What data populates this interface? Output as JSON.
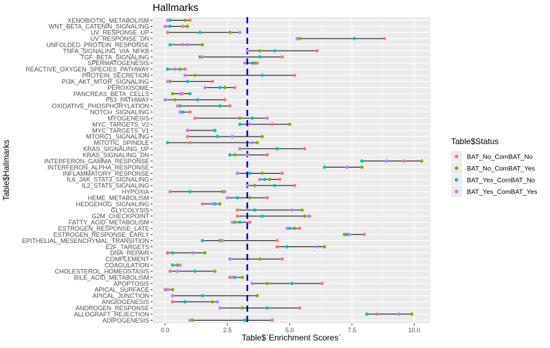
{
  "chart_data": {
    "type": "dumbbell",
    "title": "Hallmarks",
    "xlabel": "Table$`Enrichment Scores`",
    "ylabel": "Table$Hallmarks",
    "xlim": [
      -0.5,
      10.65
    ],
    "xticks": [
      0.0,
      2.5,
      5.0,
      7.5,
      10.0
    ],
    "xtick_labels": [
      "0.0",
      "2.5",
      "5.0",
      "7.5",
      "10.0"
    ],
    "reference_line": 3.3,
    "grid": true,
    "legend": {
      "title": "Table$Status",
      "position": "right",
      "entries": [
        "BAT_No_ComBAT_No",
        "BAT_No_ComBAT_Yes",
        "BAT_Yes_ComBAT_No",
        "BAT_Yes_ComBAT_Yes"
      ]
    },
    "colors": {
      "BAT_No_ComBAT_No": "#F8766D",
      "BAT_No_ComBAT_Yes": "#7CAE00",
      "BAT_Yes_ComBAT_No": "#00BFC4",
      "BAT_Yes_ComBAT_Yes": "#C77CFF",
      "reference_line": "#0000CC",
      "panel": "#EBEBEB"
    },
    "categories": [
      "XENOBIOTIC_METABOLISM",
      "WNT_BETA_CATENIN_SIGNALING",
      "UV_RESPONSE_UP",
      "UV_RESPONSE_DN",
      "UNFOLDED_PROTEIN_RESPONSE",
      "TNFA_SIGNALING_VIA_NFKB",
      "TGF_BETA_SIGNALING",
      "SPERMATOGENESIS",
      "REACTIVE_OXYGEN_SPECIES_PATHWAY",
      "PROTEIN_SECRETION",
      "PI3K_AKT_MTOR_SIGNALING",
      "PEROXISOME",
      "PANCREAS_BETA_CELLS",
      "P53_PATHWAY",
      "OXIDATIVE_PHOSPHORYLATION",
      "NOTCH_SIGNALING",
      "MYOGENESIS",
      "MYC_TARGETS_V2",
      "MYC_TARGETS_V1",
      "MTORC1_SIGNALING",
      "MITOTIC_SPINDLE",
      "KRAS_SIGNALING_UP",
      "KRAS_SIGNALING_DN",
      "INTERFERON_GAMMA_RESPONSE",
      "INTERFERON_ALPHA_RESPONSE",
      "INFLAMMATORY_RESPONSE",
      "IL6_JAK_STAT3_SIGNALING",
      "IL2_STAT5_SIGNALING",
      "HYPOXIA",
      "HEME_METABOLISM",
      "HEDGEHOG_SIGNALING",
      "GLYCOLYSIS",
      "G2M_CHECKPOINT",
      "FATTY_ACID_METABOLISM",
      "ESTROGEN_RESPONSE_LATE",
      "ESTROGEN_RESPONSE_EARLY",
      "EPITHELIAL_MESENCHYMAL_TRANSITION",
      "E2F_TARGETS",
      "DNA_REPAIR",
      "COMPLEMENT",
      "COAGULATION",
      "CHOLESTEROL_HOMEOSTASIS",
      "BILE_ACID_METABOLISM",
      "APOPTOSIS",
      "APICAL_SURFACE",
      "APICAL_JUNCTION",
      "ANGIOGENESIS",
      "ANDROGEN_RESPONSE",
      "ALLOGRAFT_REJECTION",
      "ADIPOGENESIS"
    ],
    "series": [
      {
        "name": "BAT_No_ComBAT_No",
        "values": [
          1.0,
          0.7,
          0.1,
          8.8,
          0.7,
          6.1,
          4.7,
          3.7,
          0.8,
          5.2,
          1.9,
          2.8,
          0.7,
          2.4,
          2.6,
          1.0,
          1.2,
          4.3,
          0.9,
          0.9,
          1.0,
          5.6,
          4.1,
          9.6,
          7.3,
          4.7,
          4.6,
          5.2,
          0.2,
          4.1,
          1.5,
          2.9,
          2.9,
          3.4,
          5.4,
          8.0,
          4.5,
          4.5,
          0.1,
          4.7,
          0.6,
          0.2,
          2.6,
          6.3,
          0.0,
          0.3,
          0.3,
          5.4,
          8.5,
          4.3
        ]
      },
      {
        "name": "BAT_No_ComBAT_Yes",
        "values": [
          0.8,
          0.9,
          2.6,
          5.4,
          1.5,
          3.8,
          1.4,
          3.6,
          0.6,
          1.2,
          0.2,
          2.4,
          0.3,
          0.4,
          0.6,
          0.7,
          3.0,
          5.0,
          2.0,
          3.9,
          3.7,
          3.0,
          2.8,
          10.3,
          7.9,
          3.9,
          4.2,
          3.6,
          2.3,
          3.4,
          2.2,
          5.5,
          5.6,
          2.8,
          5.2,
          7.2,
          2.2,
          6.4,
          1.6,
          3.8,
          0.5,
          2.0,
          3.1,
          4.1,
          0.3,
          3.7,
          1.9,
          3.1,
          9.9,
          1.1
        ]
      },
      {
        "name": "BAT_Yes_ComBAT_No",
        "values": [
          0.2,
          0.2,
          1.4,
          7.6,
          0.2,
          4.4,
          3.8,
          3.5,
          0.1,
          3.9,
          0.9,
          2.2,
          1.0,
          1.3,
          2.2,
          0.7,
          3.5,
          3.0,
          2.0,
          2.1,
          0.1,
          4.5,
          2.6,
          7.9,
          6.4,
          3.4,
          4.0,
          4.4,
          1.0,
          2.9,
          2.0,
          3.6,
          3.9,
          3.0,
          5.0,
          7.3,
          1.5,
          4.9,
          0.3,
          2.6,
          0.3,
          1.2,
          2.8,
          5.1,
          0.1,
          1.5,
          0.8,
          4.1,
          8.1,
          3.2
        ]
      },
      {
        "name": "BAT_Yes_ComBAT_Yes",
        "values": [
          0.1,
          0.0,
          3.0,
          5.3,
          0.9,
          3.3,
          1.5,
          3.2,
          0.4,
          0.8,
          0.1,
          1.6,
          0.6,
          0.0,
          0.5,
          0.6,
          4.1,
          3.4,
          0.9,
          2.7,
          3.5,
          3.0,
          3.3,
          8.9,
          7.3,
          2.9,
          3.8,
          3.3,
          2.4,
          2.5,
          1.9,
          5.1,
          5.8,
          2.7,
          4.9,
          7.4,
          2.3,
          6.1,
          1.1,
          2.6,
          0.6,
          0.5,
          2.7,
          3.5,
          0.1,
          0.3,
          2.1,
          2.2,
          9.4,
          1.0
        ]
      }
    ]
  }
}
